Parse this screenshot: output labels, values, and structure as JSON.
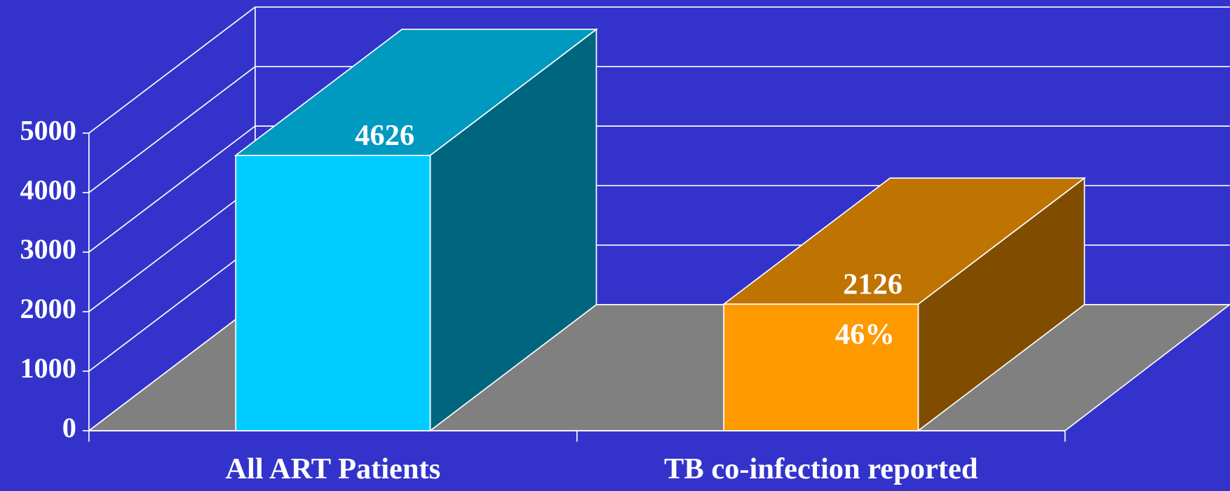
{
  "chart_data": {
    "type": "bar3d",
    "categories": [
      "All ART Patients",
      "TB co-infection reported"
    ],
    "values": [
      4626,
      2126
    ],
    "colors": [
      "#00ccff",
      "#ff9900"
    ],
    "annotations": [
      {
        "text": "46%",
        "category": "TB co-infection reported"
      }
    ],
    "ylim": [
      0,
      5000
    ],
    "yticks": [
      0,
      1000,
      2000,
      3000,
      4000,
      5000
    ],
    "grid": true
  }
}
